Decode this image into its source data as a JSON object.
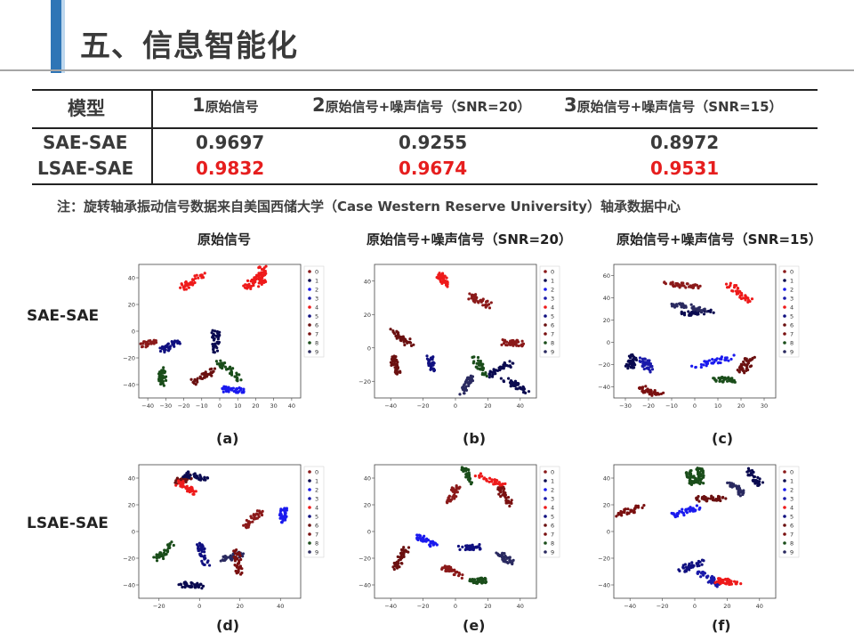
{
  "title": "五、信息智能化",
  "table": {
    "headers": [
      "模型",
      "1",
      "原始信号",
      "2",
      "原始信号+噪声信号（SNR=20）",
      "3",
      "原始信号+噪声信号（SNR=15）"
    ],
    "rows": [
      {
        "model": "SAE-SAE",
        "values": [
          "0.9697",
          "0.9255",
          "0.8972"
        ]
      },
      {
        "model": "LSAE-SAE",
        "values": [
          "0.9832",
          "0.9674",
          "0.9531"
        ]
      }
    ]
  },
  "note": "注：旋转轴承振动信号数据来自美国西储大学（Case Western Reserve University）轴承数据中心",
  "column_titles": [
    "原始信号",
    "原始信号+噪声信号（SNR=20）",
    "原始信号+噪声信号（SNR=15）"
  ],
  "row_titles": [
    "SAE-SAE",
    "LSAE-SAE"
  ],
  "legend_labels": [
    "0",
    "1",
    "2",
    "3",
    "4",
    "5",
    "6",
    "7",
    "8",
    "9"
  ],
  "class_colors": [
    "#8b1a1a",
    "#0a0a50",
    "#1a1aee",
    "#1a1aaa",
    "#ee1a1a",
    "#101080",
    "#6b1010",
    "#7a1010",
    "#1a4d1a",
    "#2a2a60"
  ],
  "class_markers": [
    "circle",
    "triangle",
    "dot",
    "dot",
    "plus",
    "square",
    "square",
    "square",
    "circle",
    "triangle"
  ],
  "panels": [
    {
      "caption": "(a)",
      "xticks": [
        "−40",
        "−30",
        "−20",
        "−10",
        "0",
        "10",
        "20",
        "30",
        "40"
      ],
      "yticks": [
        "40",
        "20",
        "0",
        "−20",
        "−40"
      ],
      "xlim": [
        -42,
        42
      ],
      "ylim": [
        -48,
        50
      ],
      "clusters": [
        [
          22,
          42,
          4
        ],
        [
          18,
          38,
          4
        ],
        [
          -30,
          -32,
          8
        ],
        [
          -38,
          -8,
          0
        ],
        [
          -2,
          -6,
          1
        ],
        [
          -8,
          -32,
          6
        ],
        [
          -26,
          -10,
          5
        ],
        [
          5,
          -28,
          8
        ],
        [
          6,
          -42,
          2
        ],
        [
          -14,
          38,
          4
        ]
      ]
    },
    {
      "caption": "(b)",
      "xticks": [
        "−40",
        "−20",
        "0",
        "20",
        "40"
      ],
      "yticks": [
        "40",
        "20",
        "0",
        "−20"
      ],
      "xlim": [
        -55,
        45
      ],
      "ylim": [
        -30,
        55
      ],
      "clusters": [
        [
          -12,
          45,
          4
        ],
        [
          22,
          -12,
          1
        ],
        [
          10,
          32,
          0
        ],
        [
          32,
          -22,
          1
        ],
        [
          -42,
          -10,
          6
        ],
        [
          30,
          5,
          0
        ],
        [
          -20,
          -8,
          5
        ],
        [
          -38,
          8,
          6
        ],
        [
          10,
          -10,
          8
        ],
        [
          2,
          -22,
          9
        ]
      ]
    },
    {
      "caption": "(c)",
      "xticks": [
        "−30",
        "−20",
        "−10",
        "0",
        "10",
        "20",
        "30"
      ],
      "yticks": [
        "60",
        "40",
        "20",
        "0",
        "−20",
        "−40"
      ],
      "xlim": [
        -35,
        30
      ],
      "ylim": [
        -45,
        65
      ],
      "clusters": [
        [
          -8,
          48,
          0
        ],
        [
          -2,
          25,
          1
        ],
        [
          5,
          -15,
          2
        ],
        [
          -22,
          -18,
          3
        ],
        [
          15,
          42,
          4
        ],
        [
          -20,
          -40,
          7
        ],
        [
          10,
          -30,
          8
        ],
        [
          -5,
          30,
          9
        ],
        [
          18,
          -18,
          6
        ],
        [
          -28,
          -15,
          1
        ]
      ]
    },
    {
      "caption": "(d)",
      "xticks": [
        "−20",
        "0",
        "20",
        "40"
      ],
      "yticks": [
        "40",
        "20",
        "0",
        "−20",
        "−40"
      ],
      "xlim": [
        -35,
        58
      ],
      "ylim": [
        -55,
        45
      ],
      "clusters": [
        [
          -10,
          34,
          6
        ],
        [
          -2,
          36,
          1
        ],
        [
          48,
          8,
          2
        ],
        [
          -20,
          -20,
          8
        ],
        [
          -8,
          28,
          4
        ],
        [
          2,
          -22,
          5
        ],
        [
          30,
          3,
          0
        ],
        [
          -5,
          -45,
          1
        ],
        [
          18,
          -24,
          9
        ],
        [
          22,
          -28,
          7
        ]
      ]
    },
    {
      "caption": "(e)",
      "xticks": [
        "−40",
        "−20",
        "0",
        "20",
        "40"
      ],
      "yticks": [
        "40",
        "20",
        "0",
        "−20",
        "−40"
      ],
      "xlim": [
        -55,
        38
      ],
      "ylim": [
        -48,
        52
      ],
      "clusters": [
        [
          -10,
          30,
          0
        ],
        [
          20,
          -18,
          9
        ],
        [
          -25,
          -5,
          2
        ],
        [
          0,
          -10,
          5
        ],
        [
          12,
          40,
          4
        ],
        [
          -40,
          -18,
          6
        ],
        [
          20,
          28,
          7
        ],
        [
          5,
          -35,
          8
        ],
        [
          -10,
          -28,
          0
        ],
        [
          -2,
          45,
          8
        ]
      ]
    },
    {
      "caption": "(f)",
      "xticks": [
        "−40",
        "−20",
        "0",
        "20",
        "40"
      ],
      "yticks": [
        "40",
        "20",
        "0",
        "−20",
        "−40"
      ],
      "xlim": [
        -48,
        42
      ],
      "ylim": [
        -55,
        48
      ],
      "clusters": [
        [
          -5,
          38,
          8
        ],
        [
          30,
          38,
          1
        ],
        [
          -8,
          12,
          2
        ],
        [
          5,
          -40,
          3
        ],
        [
          15,
          -42,
          4
        ],
        [
          -5,
          -30,
          5
        ],
        [
          5,
          22,
          6
        ],
        [
          -40,
          12,
          7
        ],
        [
          0,
          40,
          8
        ],
        [
          20,
          30,
          9
        ]
      ]
    }
  ]
}
